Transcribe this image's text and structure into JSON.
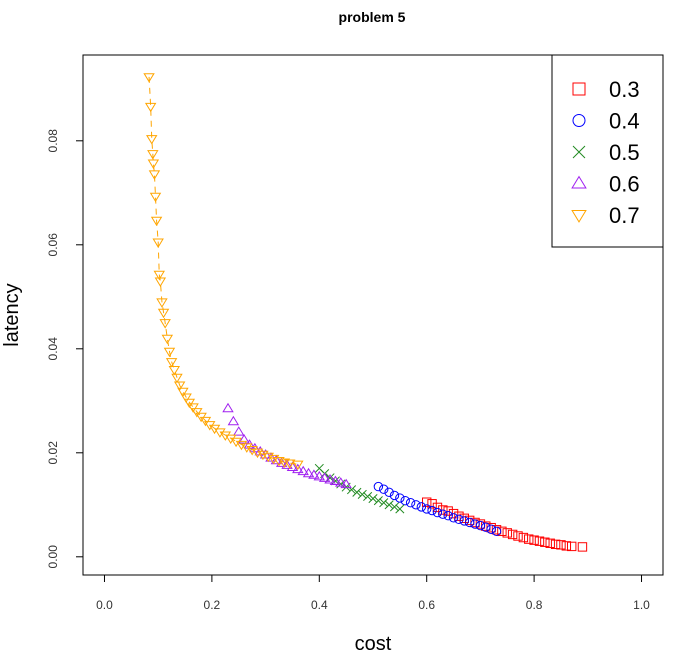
{
  "chart_data": {
    "type": "scatter",
    "title": "problem 5",
    "xlabel": "cost",
    "ylabel": "latency",
    "xlim": [
      -0.04,
      1.04
    ],
    "ylim": [
      -0.0035,
      0.0965
    ],
    "xticks": [
      0.0,
      0.2,
      0.4,
      0.6,
      0.8,
      1.0
    ],
    "xtick_labels": [
      "0.0",
      "0.2",
      "0.4",
      "0.6",
      "0.8",
      "1.0"
    ],
    "yticks": [
      0.0,
      0.02,
      0.04,
      0.06,
      0.08
    ],
    "ytick_labels": [
      "0.00",
      "0.02",
      "0.04",
      "0.06",
      "0.08"
    ],
    "grid": false,
    "legend_position": "top-right",
    "series": [
      {
        "name": "0.3",
        "color": "#ff0000",
        "marker": "square",
        "x": [
          0.6,
          0.61,
          0.62,
          0.63,
          0.64,
          0.65,
          0.66,
          0.67,
          0.68,
          0.69,
          0.7,
          0.71,
          0.72,
          0.73,
          0.74,
          0.75,
          0.76,
          0.77,
          0.78,
          0.79,
          0.8,
          0.81,
          0.82,
          0.83,
          0.84,
          0.85,
          0.86,
          0.87,
          0.89
        ],
        "y": [
          0.0105,
          0.0102,
          0.0095,
          0.009,
          0.0088,
          0.0083,
          0.0078,
          0.0074,
          0.007,
          0.0066,
          0.0063,
          0.0059,
          0.0056,
          0.0052,
          0.0049,
          0.0046,
          0.0043,
          0.004,
          0.0037,
          0.0034,
          0.0032,
          0.003,
          0.0028,
          0.0026,
          0.0024,
          0.0023,
          0.0021,
          0.002,
          0.0019
        ]
      },
      {
        "name": "0.4",
        "color": "#0000ff",
        "marker": "circle",
        "x": [
          0.51,
          0.52,
          0.53,
          0.54,
          0.55,
          0.56,
          0.57,
          0.58,
          0.59,
          0.6,
          0.61,
          0.62,
          0.63,
          0.64,
          0.65,
          0.66,
          0.67,
          0.68,
          0.69,
          0.7,
          0.71,
          0.72,
          0.73
        ],
        "y": [
          0.0135,
          0.013,
          0.0124,
          0.0118,
          0.0113,
          0.0108,
          0.0104,
          0.01,
          0.0096,
          0.0092,
          0.0089,
          0.0085,
          0.0082,
          0.0079,
          0.0075,
          0.0072,
          0.0069,
          0.0066,
          0.0063,
          0.006,
          0.0057,
          0.0053,
          0.0049
        ]
      },
      {
        "name": "0.5",
        "color": "#228b22",
        "marker": "x",
        "x": [
          0.4,
          0.41,
          0.42,
          0.43,
          0.44,
          0.45,
          0.46,
          0.47,
          0.48,
          0.49,
          0.5,
          0.51,
          0.52,
          0.53,
          0.54,
          0.55
        ],
        "y": [
          0.017,
          0.016,
          0.0152,
          0.0146,
          0.014,
          0.0134,
          0.0129,
          0.0124,
          0.012,
          0.0116,
          0.0112,
          0.0108,
          0.0104,
          0.01,
          0.0096,
          0.0092
        ]
      },
      {
        "name": "0.6",
        "color": "#a020f0",
        "marker": "triangle-up",
        "x": [
          0.23,
          0.24,
          0.25,
          0.26,
          0.27,
          0.28,
          0.29,
          0.3,
          0.31,
          0.32,
          0.33,
          0.34,
          0.35,
          0.36,
          0.37,
          0.38,
          0.39,
          0.4,
          0.41,
          0.42,
          0.43,
          0.44,
          0.45
        ],
        "y": [
          0.0285,
          0.026,
          0.024,
          0.0225,
          0.0215,
          0.0208,
          0.0202,
          0.0196,
          0.019,
          0.0185,
          0.018,
          0.0176,
          0.0172,
          0.0168,
          0.0164,
          0.016,
          0.0157,
          0.0154,
          0.0151,
          0.0148,
          0.0145,
          0.0142,
          0.0139
        ]
      },
      {
        "name": "0.7",
        "color": "#ffa500",
        "marker": "triangle-down",
        "x": [
          0.083,
          0.086,
          0.088,
          0.09,
          0.091,
          0.093,
          0.095,
          0.097,
          0.1,
          0.102,
          0.104,
          0.107,
          0.11,
          0.113,
          0.117,
          0.121,
          0.125,
          0.13,
          0.135,
          0.14,
          0.146,
          0.152,
          0.158,
          0.165,
          0.172,
          0.18,
          0.188,
          0.196,
          0.205,
          0.215,
          0.225,
          0.235,
          0.245,
          0.255,
          0.265,
          0.275,
          0.285,
          0.295,
          0.305,
          0.315,
          0.325,
          0.335,
          0.345,
          0.36
        ],
        "y": [
          0.0923,
          0.0866,
          0.0804,
          0.0775,
          0.0757,
          0.0736,
          0.0693,
          0.0647,
          0.0605,
          0.0543,
          0.053,
          0.049,
          0.047,
          0.045,
          0.042,
          0.0395,
          0.0375,
          0.036,
          0.0345,
          0.033,
          0.0318,
          0.0307,
          0.0297,
          0.0288,
          0.0279,
          0.027,
          0.0262,
          0.0254,
          0.0247,
          0.024,
          0.0234,
          0.0228,
          0.0222,
          0.0216,
          0.0211,
          0.0206,
          0.0201,
          0.0197,
          0.0193,
          0.0189,
          0.0185,
          0.0182,
          0.018,
          0.0178
        ]
      }
    ]
  }
}
